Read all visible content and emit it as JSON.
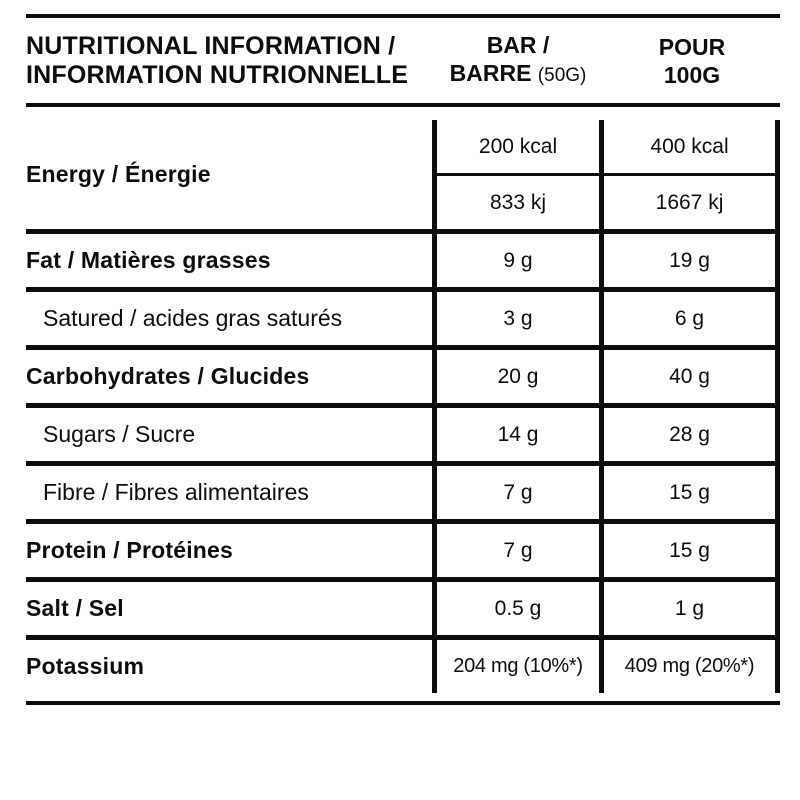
{
  "table": {
    "header": {
      "col1_line1": "NUTRITIONAL INFORMATION /",
      "col1_line2": "INFORMATION NUTRIONNELLE",
      "col2_line1": "BAR /",
      "col2_line2_name": "BARRE",
      "col2_line2_note": "(50G)",
      "col3_line1": "POUR",
      "col3_line2": "100G"
    },
    "energy": {
      "label": "Energy / Énergie",
      "bar_kcal": "200 kcal",
      "per100_kcal": "400 kcal",
      "bar_kj": "833 kj",
      "per100_kj": "1667 kj"
    },
    "rows": [
      {
        "label": "Fat / Matières grasses",
        "bar": "9 g",
        "per100": "19 g",
        "style": "bold"
      },
      {
        "label": "Satured / acides gras saturés",
        "bar": "3 g",
        "per100": "6 g",
        "style": "sub"
      },
      {
        "label": "Carbohydrates / Glucides",
        "bar": "20 g",
        "per100": "40 g",
        "style": "bold"
      },
      {
        "label": "Sugars / Sucre",
        "bar": "14 g",
        "per100": "28 g",
        "style": "sub"
      },
      {
        "label": "Fibre / Fibres alimentaires",
        "bar": "7 g",
        "per100": "15 g",
        "style": "sub"
      },
      {
        "label": "Protein / Protéines",
        "bar": "7 g",
        "per100": "15 g",
        "style": "bold"
      },
      {
        "label": "Salt / Sel",
        "bar": "0.5 g",
        "per100": "1 g",
        "style": "bold"
      },
      {
        "label": "Potassium",
        "bar": "204 mg (10%*)",
        "per100": "409 mg (20%*)",
        "style": "bold"
      }
    ],
    "colors": {
      "ink": "#0d0d0d",
      "background": "#ffffff"
    }
  }
}
